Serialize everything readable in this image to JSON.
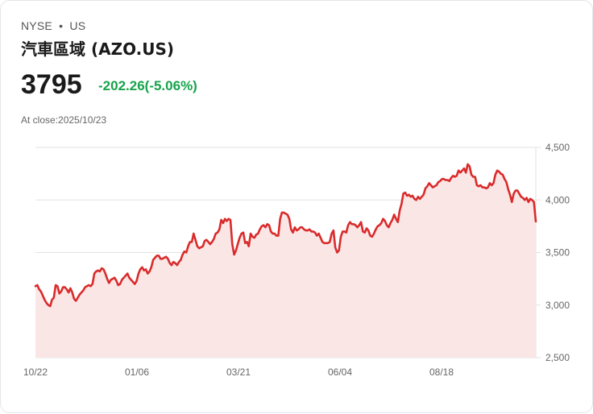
{
  "header": {
    "exchange": "NYSE",
    "separator": "•",
    "region": "US",
    "exchange_line": "NYSE  •  US",
    "title": "汽車區域 (AZO.US)",
    "price": "3795",
    "change": "-202.26(-5.06%)",
    "change_color": "#16a34a",
    "close_label": "At close:2025/10/23"
  },
  "colors": {
    "line": "#d92b2b",
    "fill": "#fbe6e6",
    "grid": "#e2e2e2"
  },
  "chart_data": {
    "type": "area",
    "title": "汽車區域 (AZO.US)",
    "xlabel": "",
    "ylabel": "",
    "ylim": [
      2500,
      4500
    ],
    "yticks": [
      2500,
      3000,
      3500,
      4000,
      4500
    ],
    "ytick_labels": [
      "2,500",
      "3,000",
      "3,500",
      "4,000",
      "4,500"
    ],
    "xtick_labels": [
      "10/22",
      "01/06",
      "03/21",
      "06/04",
      "08/18"
    ],
    "grid": true,
    "y_axis_position": "right",
    "legend": "none",
    "series": [
      {
        "name": "AZO.US",
        "values": [
          3180,
          3190,
          3150,
          3130,
          3090,
          3050,
          3020,
          3000,
          2990,
          3050,
          3070,
          3190,
          3180,
          3110,
          3130,
          3170,
          3170,
          3150,
          3120,
          3160,
          3120,
          3060,
          3040,
          3070,
          3100,
          3120,
          3140,
          3170,
          3180,
          3190,
          3180,
          3200,
          3300,
          3320,
          3330,
          3320,
          3350,
          3340,
          3300,
          3250,
          3210,
          3240,
          3250,
          3260,
          3230,
          3190,
          3200,
          3240,
          3260,
          3280,
          3300,
          3260,
          3240,
          3220,
          3200,
          3230,
          3300,
          3340,
          3360,
          3330,
          3340,
          3300,
          3320,
          3360,
          3430,
          3450,
          3470,
          3470,
          3440,
          3440,
          3450,
          3460,
          3440,
          3400,
          3380,
          3410,
          3400,
          3380,
          3410,
          3430,
          3480,
          3510,
          3500,
          3560,
          3600,
          3600,
          3680,
          3620,
          3560,
          3540,
          3550,
          3560,
          3610,
          3620,
          3600,
          3580,
          3600,
          3630,
          3680,
          3690,
          3720,
          3810,
          3780,
          3820,
          3800,
          3820,
          3810,
          3580,
          3480,
          3520,
          3580,
          3640,
          3680,
          3690,
          3590,
          3600,
          3560,
          3680,
          3650,
          3640,
          3670,
          3680,
          3720,
          3750,
          3760,
          3740,
          3770,
          3760,
          3700,
          3680,
          3680,
          3660,
          3660,
          3820,
          3880,
          3880,
          3870,
          3860,
          3820,
          3720,
          3690,
          3740,
          3710,
          3720,
          3740,
          3740,
          3720,
          3710,
          3710,
          3720,
          3700,
          3700,
          3690,
          3660,
          3680,
          3640,
          3600,
          3590,
          3590,
          3590,
          3600,
          3680,
          3710,
          3550,
          3500,
          3520,
          3650,
          3700,
          3700,
          3690,
          3760,
          3790,
          3770,
          3770,
          3760,
          3740,
          3760,
          3790,
          3700,
          3690,
          3730,
          3710,
          3660,
          3650,
          3680,
          3720,
          3750,
          3760,
          3780,
          3820,
          3800,
          3760,
          3740,
          3780,
          3810,
          3860,
          3820,
          3790,
          3900,
          3960,
          4060,
          4070,
          4040,
          4050,
          4030,
          4040,
          4010,
          4000,
          4030,
          4010,
          4030,
          4050,
          4110,
          4130,
          4160,
          4140,
          4120,
          4130,
          4140,
          4170,
          4180,
          4200,
          4200,
          4190,
          4190,
          4180,
          4210,
          4230,
          4220,
          4230,
          4280,
          4260,
          4280,
          4300,
          4260,
          4340,
          4320,
          4240,
          4220,
          4220,
          4140,
          4130,
          4140,
          4120,
          4120,
          4110,
          4120,
          4160,
          4140,
          4160,
          4240,
          4280,
          4270,
          4250,
          4240,
          4200,
          4170,
          4100,
          4050,
          3980,
          4060,
          4090,
          4090,
          4060,
          4030,
          4020,
          4000,
          4020,
          3980,
          4010,
          4000,
          3980,
          3795
        ]
      }
    ]
  }
}
